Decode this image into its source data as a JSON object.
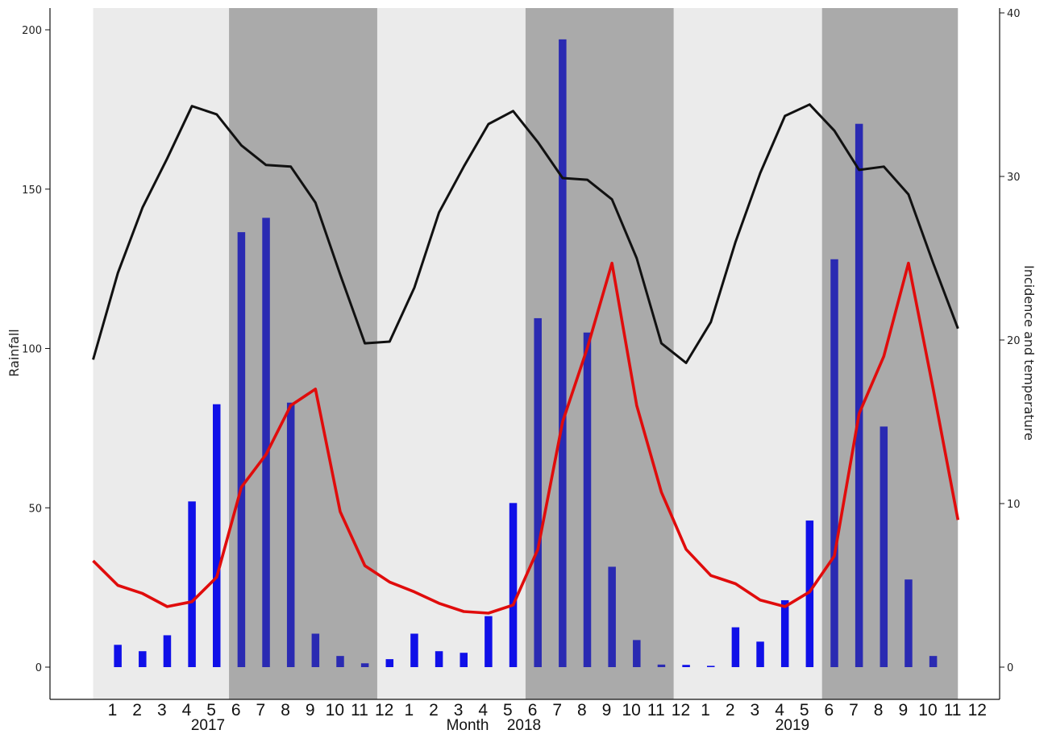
{
  "chart_data": {
    "type": "bar",
    "xlabel": "Month",
    "ylabel_left": "Rainfall",
    "ylabel_right": "Incidence and temperature",
    "ylim_left": [
      0,
      200
    ],
    "ylim_right": [
      0,
      40
    ],
    "yticks_left": [
      "0",
      "50",
      "100",
      "150",
      "200"
    ],
    "yticks_right": [
      "0",
      "10",
      "20",
      "30",
      "40"
    ],
    "years": [
      "2017",
      "2018",
      "2019"
    ],
    "months": [
      "1",
      "2",
      "3",
      "4",
      "5",
      "6",
      "7",
      "8",
      "9",
      "10",
      "11",
      "12"
    ],
    "season_background": {
      "wet_months": [
        "7",
        "8",
        "9",
        "10",
        "11",
        "12"
      ],
      "wet_color": "#aaaaaa",
      "dry_color": "#ebebeb"
    },
    "grid": false,
    "legend": "none",
    "series": [
      {
        "type": "bar",
        "axis": "left",
        "color": "#1010e8",
        "values": [
          0,
          7,
          5,
          10,
          52,
          82.5,
          136.5,
          141,
          83,
          10.5,
          3.5,
          1.2,
          2.5,
          10.5,
          5,
          4.5,
          16,
          51.5,
          109.5,
          197,
          105,
          31.5,
          8.5,
          0.8,
          0.7,
          0.4,
          12.5,
          8,
          21,
          46,
          128,
          170.5,
          75.5,
          27.5,
          3.5,
          0
        ]
      },
      {
        "type": "line",
        "axis": "right",
        "color": "#111111",
        "values": [
          18.8,
          24.1,
          28.1,
          31.1,
          34.3,
          33.8,
          31.9,
          30.7,
          30.6,
          28.4,
          24.0,
          19.8,
          19.9,
          23.2,
          27.8,
          30.6,
          33.2,
          34.0,
          32.1,
          29.9,
          29.8,
          28.6,
          25.0,
          19.8,
          18.6,
          21.1,
          26.0,
          30.2,
          33.7,
          34.4,
          32.8,
          30.4,
          30.6,
          28.9,
          24.7,
          20.7
        ]
      },
      {
        "type": "line",
        "axis": "right",
        "color": "#e00c0c",
        "values": [
          6.5,
          5.0,
          4.5,
          3.7,
          4.0,
          5.5,
          11.0,
          13.0,
          16.0,
          17.0,
          9.5,
          6.2,
          5.2,
          4.6,
          3.9,
          3.4,
          3.3,
          3.8,
          7.2,
          15.0,
          19.5,
          24.7,
          16.0,
          10.7,
          7.2,
          5.6,
          5.1,
          4.1,
          3.7,
          4.6,
          6.8,
          15.5,
          19.0,
          24.7,
          17.0,
          9.0
        ]
      }
    ]
  }
}
